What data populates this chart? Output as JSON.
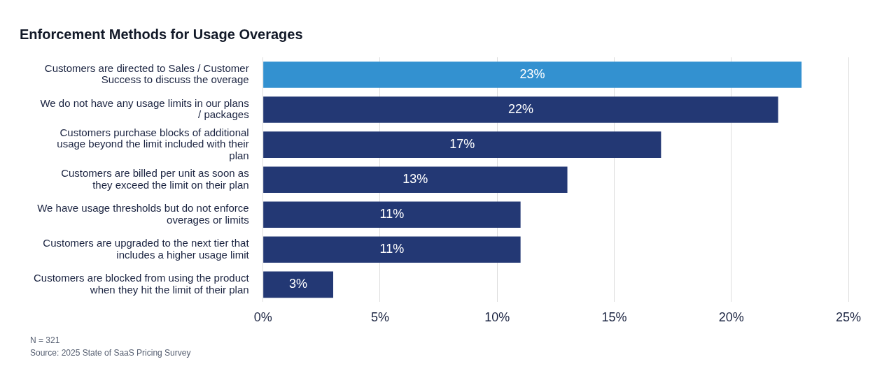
{
  "chart_data": {
    "type": "bar",
    "orientation": "horizontal",
    "title": "Enforcement Methods for Usage Overages",
    "categories": [
      "Customers are directed to Sales / Customer Success to discuss the overage",
      "We do not have any usage limits in our plans / packages",
      "Customers purchase blocks of additional usage beyond the limit included with their plan",
      "Customers are billed per unit as soon as they exceed the limit on their plan",
      "We have usage thresholds but do not enforce overages or limits",
      "Customers are upgraded to the next tier that includes a higher usage limit",
      "Customers are blocked from using the product when they hit the limit of their plan"
    ],
    "values": [
      23,
      22,
      17,
      13,
      11,
      11,
      3
    ],
    "colors": [
      "#3391d0",
      "#233874",
      "#233874",
      "#233874",
      "#233874",
      "#233874",
      "#233874"
    ],
    "xlim": [
      0,
      25
    ],
    "xticks": [
      {
        "value": 0,
        "label": "0%"
      },
      {
        "value": 5,
        "label": "5%"
      },
      {
        "value": 10,
        "label": "10%"
      },
      {
        "value": 15,
        "label": "15%"
      },
      {
        "value": 20,
        "label": "20%"
      },
      {
        "value": 25,
        "label": "25%"
      }
    ],
    "value_labels": [
      "23%",
      "22%",
      "17%",
      "13%",
      "11%",
      "11%",
      "3%"
    ],
    "grid": "x",
    "legend": false,
    "annotations": [
      "N = 321",
      "Source: 2025 State of SaaS Pricing Survey"
    ]
  }
}
